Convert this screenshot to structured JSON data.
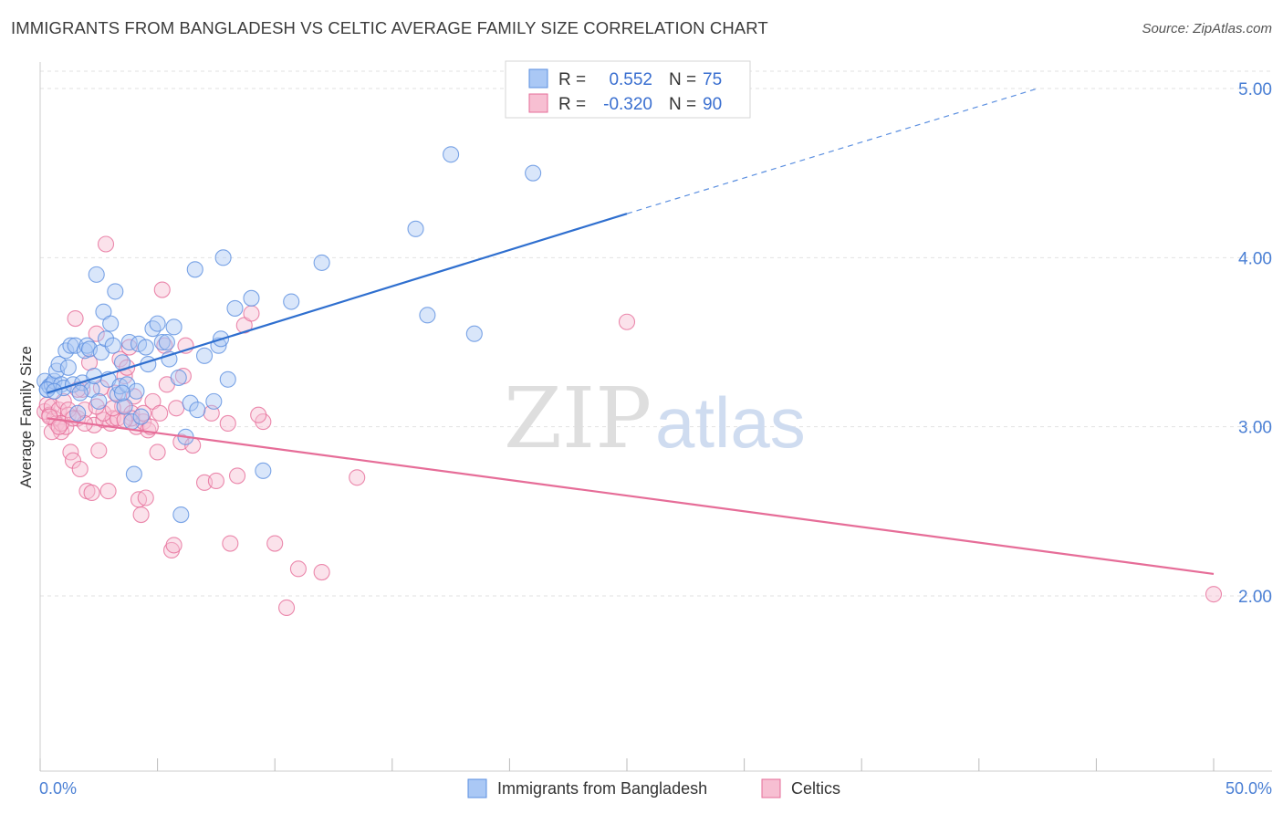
{
  "title": "IMMIGRANTS FROM BANGLADESH VS CELTIC AVERAGE FAMILY SIZE CORRELATION CHART",
  "source": "Source: ZipAtlas.com",
  "watermark": {
    "zip": "ZIP",
    "atlas": "atlas"
  },
  "colors": {
    "blue": "#5b8fe0",
    "blue_fill": "#aac8f5",
    "pink": "#e66d98",
    "pink_fill": "#f7bfd2",
    "tick": "#4a7fd4",
    "grid": "#e2e2e2"
  },
  "legend": {
    "rows": [
      {
        "r_label": "R =",
        "r_value": "0.552",
        "n_label": "N =",
        "n_value": "75"
      },
      {
        "r_label": "R =",
        "r_value": "-0.320",
        "n_label": "N =",
        "n_value": "90"
      }
    ]
  },
  "bottom_legend": [
    "Immigrants from Bangladesh",
    "Celtics"
  ],
  "chart_data": {
    "type": "scatter",
    "title": "IMMIGRANTS FROM BANGLADESH VS CELTIC AVERAGE FAMILY SIZE CORRELATION CHART",
    "xlabel": "",
    "ylabel": "Average Family Size",
    "xlim": [
      0,
      50
    ],
    "ylim": [
      1.0,
      5.1
    ],
    "x_tick_labels": [
      "0.0%",
      "50.0%"
    ],
    "y_ticks": [
      2.0,
      3.0,
      4.0,
      5.0
    ],
    "y_tick_labels": [
      "2.00",
      "3.00",
      "4.00",
      "5.00"
    ],
    "grid": true,
    "legend_position": "top-center",
    "series": [
      {
        "name": "Immigrants from Bangladesh",
        "color": "#5b8fe0",
        "trend": {
          "x": [
            0.3,
            25
          ],
          "y": [
            3.2,
            4.26
          ],
          "dashed_to": [
            42.5,
            5.0
          ]
        },
        "points": [
          [
            0.2,
            3.27
          ],
          [
            0.3,
            3.22
          ],
          [
            0.4,
            3.24
          ],
          [
            0.5,
            3.25
          ],
          [
            0.6,
            3.27
          ],
          [
            0.7,
            3.33
          ],
          [
            0.8,
            3.37
          ],
          [
            0.9,
            3.25
          ],
          [
            1.0,
            3.23
          ],
          [
            1.1,
            3.45
          ],
          [
            1.2,
            3.35
          ],
          [
            1.3,
            3.48
          ],
          [
            1.4,
            3.25
          ],
          [
            1.5,
            3.48
          ],
          [
            1.6,
            3.08
          ],
          [
            1.8,
            3.26
          ],
          [
            1.9,
            3.45
          ],
          [
            2.0,
            3.48
          ],
          [
            2.1,
            3.46
          ],
          [
            2.2,
            3.22
          ],
          [
            2.4,
            3.9
          ],
          [
            2.5,
            3.15
          ],
          [
            2.6,
            3.44
          ],
          [
            2.7,
            3.68
          ],
          [
            2.8,
            3.52
          ],
          [
            2.9,
            3.28
          ],
          [
            3.0,
            3.61
          ],
          [
            3.1,
            3.48
          ],
          [
            3.2,
            3.8
          ],
          [
            3.3,
            3.19
          ],
          [
            3.4,
            3.24
          ],
          [
            3.5,
            3.38
          ],
          [
            3.6,
            3.12
          ],
          [
            3.7,
            3.25
          ],
          [
            3.8,
            3.5
          ],
          [
            3.9,
            3.03
          ],
          [
            4.0,
            2.72
          ],
          [
            4.1,
            3.21
          ],
          [
            4.2,
            3.49
          ],
          [
            4.3,
            3.06
          ],
          [
            4.5,
            3.47
          ],
          [
            4.6,
            3.37
          ],
          [
            4.8,
            3.58
          ],
          [
            5.0,
            3.61
          ],
          [
            5.2,
            3.5
          ],
          [
            5.5,
            3.4
          ],
          [
            5.7,
            3.59
          ],
          [
            5.9,
            3.29
          ],
          [
            6.0,
            2.48
          ],
          [
            6.2,
            2.94
          ],
          [
            6.4,
            3.14
          ],
          [
            6.6,
            3.93
          ],
          [
            6.7,
            3.1
          ],
          [
            7.0,
            3.42
          ],
          [
            7.4,
            3.15
          ],
          [
            7.6,
            3.48
          ],
          [
            7.7,
            3.52
          ],
          [
            7.8,
            4.0
          ],
          [
            8.0,
            3.28
          ],
          [
            8.3,
            3.7
          ],
          [
            9.0,
            3.76
          ],
          [
            9.5,
            2.74
          ],
          [
            10.7,
            3.74
          ],
          [
            12.0,
            3.97
          ],
          [
            16.0,
            4.17
          ],
          [
            16.5,
            3.66
          ],
          [
            17.5,
            4.61
          ],
          [
            18.5,
            3.55
          ],
          [
            21.0,
            4.5
          ],
          [
            0.3,
            3.22
          ],
          [
            0.6,
            3.21
          ],
          [
            1.7,
            3.2
          ],
          [
            2.3,
            3.3
          ],
          [
            3.5,
            3.2
          ],
          [
            5.4,
            3.5
          ]
        ]
      },
      {
        "name": "Celtics",
        "color": "#e66d98",
        "trend": {
          "x": [
            0.3,
            50
          ],
          "y": [
            3.05,
            2.13
          ]
        },
        "points": [
          [
            0.2,
            3.09
          ],
          [
            0.3,
            3.13
          ],
          [
            0.4,
            3.07
          ],
          [
            0.5,
            3.12
          ],
          [
            0.6,
            3.05
          ],
          [
            0.7,
            3.02
          ],
          [
            0.8,
            3.1
          ],
          [
            0.9,
            2.97
          ],
          [
            1.0,
            3.15
          ],
          [
            1.1,
            3.0
          ],
          [
            1.2,
            3.07
          ],
          [
            1.3,
            2.85
          ],
          [
            1.4,
            2.8
          ],
          [
            1.5,
            3.64
          ],
          [
            1.6,
            3.05
          ],
          [
            1.7,
            2.75
          ],
          [
            1.8,
            3.22
          ],
          [
            1.9,
            3.1
          ],
          [
            2.0,
            2.62
          ],
          [
            2.1,
            3.38
          ],
          [
            2.2,
            2.61
          ],
          [
            2.3,
            3.01
          ],
          [
            2.4,
            3.55
          ],
          [
            2.5,
            2.86
          ],
          [
            2.6,
            3.23
          ],
          [
            2.7,
            3.04
          ],
          [
            2.8,
            4.08
          ],
          [
            2.9,
            2.62
          ],
          [
            3.0,
            3.02
          ],
          [
            3.1,
            3.05
          ],
          [
            3.2,
            3.2
          ],
          [
            3.3,
            3.05
          ],
          [
            3.4,
            3.4
          ],
          [
            3.5,
            3.12
          ],
          [
            3.6,
            3.3
          ],
          [
            3.7,
            3.35
          ],
          [
            3.8,
            3.47
          ],
          [
            3.9,
            3.08
          ],
          [
            4.0,
            3.18
          ],
          [
            4.1,
            3.0
          ],
          [
            4.2,
            2.57
          ],
          [
            4.3,
            2.48
          ],
          [
            4.4,
            3.03
          ],
          [
            4.5,
            2.58
          ],
          [
            4.6,
            2.98
          ],
          [
            4.8,
            3.15
          ],
          [
            5.0,
            2.85
          ],
          [
            5.2,
            3.81
          ],
          [
            5.3,
            3.48
          ],
          [
            5.4,
            3.25
          ],
          [
            5.6,
            2.27
          ],
          [
            5.8,
            3.11
          ],
          [
            6.0,
            2.91
          ],
          [
            6.2,
            3.48
          ],
          [
            6.5,
            2.89
          ],
          [
            7.0,
            2.67
          ],
          [
            7.5,
            2.68
          ],
          [
            8.0,
            3.02
          ],
          [
            8.4,
            2.71
          ],
          [
            8.7,
            3.6
          ],
          [
            9.0,
            3.67
          ],
          [
            9.5,
            3.03
          ],
          [
            10.0,
            2.31
          ],
          [
            10.5,
            1.93
          ],
          [
            11.0,
            2.16
          ],
          [
            12.0,
            2.14
          ],
          [
            13.5,
            2.7
          ],
          [
            25.0,
            3.62
          ],
          [
            50.0,
            2.01
          ],
          [
            0.5,
            2.97
          ],
          [
            0.9,
            3.02
          ],
          [
            1.2,
            3.1
          ],
          [
            1.9,
            3.02
          ],
          [
            2.7,
            3.08
          ],
          [
            3.1,
            3.11
          ],
          [
            3.9,
            3.05
          ],
          [
            4.4,
            3.08
          ],
          [
            5.1,
            3.08
          ],
          [
            6.1,
            3.3
          ],
          [
            7.3,
            3.08
          ],
          [
            0.4,
            3.06
          ],
          [
            0.8,
            3.0
          ],
          [
            1.4,
            3.05
          ],
          [
            1.6,
            3.22
          ],
          [
            2.4,
            3.12
          ],
          [
            3.6,
            3.04
          ],
          [
            4.7,
            3.0
          ],
          [
            5.7,
            2.3
          ],
          [
            8.1,
            2.31
          ],
          [
            9.3,
            3.07
          ]
        ]
      }
    ]
  }
}
